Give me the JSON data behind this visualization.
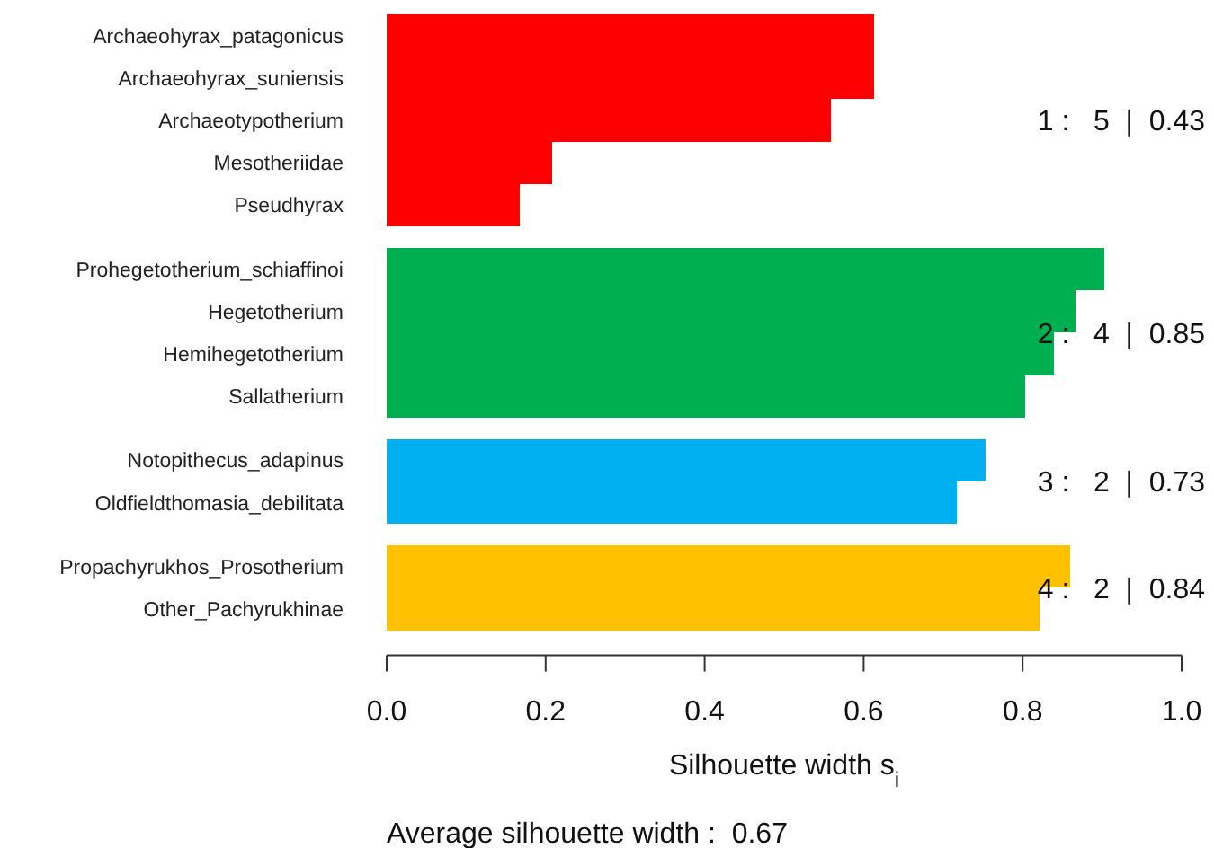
{
  "chart_data": {
    "type": "bar",
    "orientation": "horizontal",
    "xlabel": "Silhouette width s$_{i}$",
    "categories": [
      "Archaeohyrax_patagonicus",
      "Archaeohyrax_suniensis",
      "Archaeotypotherium",
      "Mesotheriidae",
      "Pseudhyrax",
      "Prohegetotherium_schiaffinoi",
      "Hegetotherium",
      "Hemihegetotherium",
      "Sallatherium",
      "Notopithecus_adapinus",
      "Oldfieldthomasia_debilitata",
      "Propachyrukhos_Prosotherium",
      "Other_Pachyrukhinae"
    ],
    "series": [
      {
        "color": "#ff0000",
        "values": [
          0.613,
          0.613,
          0.559,
          0.208,
          0.167,
          null,
          null,
          null,
          null,
          null,
          null,
          null,
          null
        ]
      },
      {
        "color": "#00b050",
        "values": [
          null,
          null,
          null,
          null,
          null,
          0.903,
          0.866,
          0.839,
          0.803,
          null,
          null,
          null,
          null
        ]
      },
      {
        "color": "#00b0f0",
        "values": [
          null,
          null,
          null,
          null,
          null,
          null,
          null,
          null,
          null,
          0.753,
          0.717,
          null,
          null
        ]
      },
      {
        "color": "#ffc000",
        "values": [
          null,
          null,
          null,
          null,
          null,
          null,
          null,
          null,
          null,
          null,
          null,
          0.86,
          0.821
        ]
      }
    ],
    "xlim": [
      0,
      1
    ],
    "xticks": [
      {
        "value": 0,
        "label": "0.0"
      },
      {
        "value": 0.2,
        "label": "0.2"
      },
      {
        "value": 0.4,
        "label": "0.4"
      },
      {
        "value": 0.6,
        "label": "0.6"
      },
      {
        "value": 0.8,
        "label": "0.8"
      },
      {
        "value": 1,
        "label": "1.0"
      }
    ],
    "grid": false,
    "annotations": [
      "1 :   5  |  0.43",
      "2 :   4  |  0.85",
      "3 :   2  |  0.73",
      "4 :   2  |  0.84",
      "Average silhouette width :  0.67"
    ]
  }
}
